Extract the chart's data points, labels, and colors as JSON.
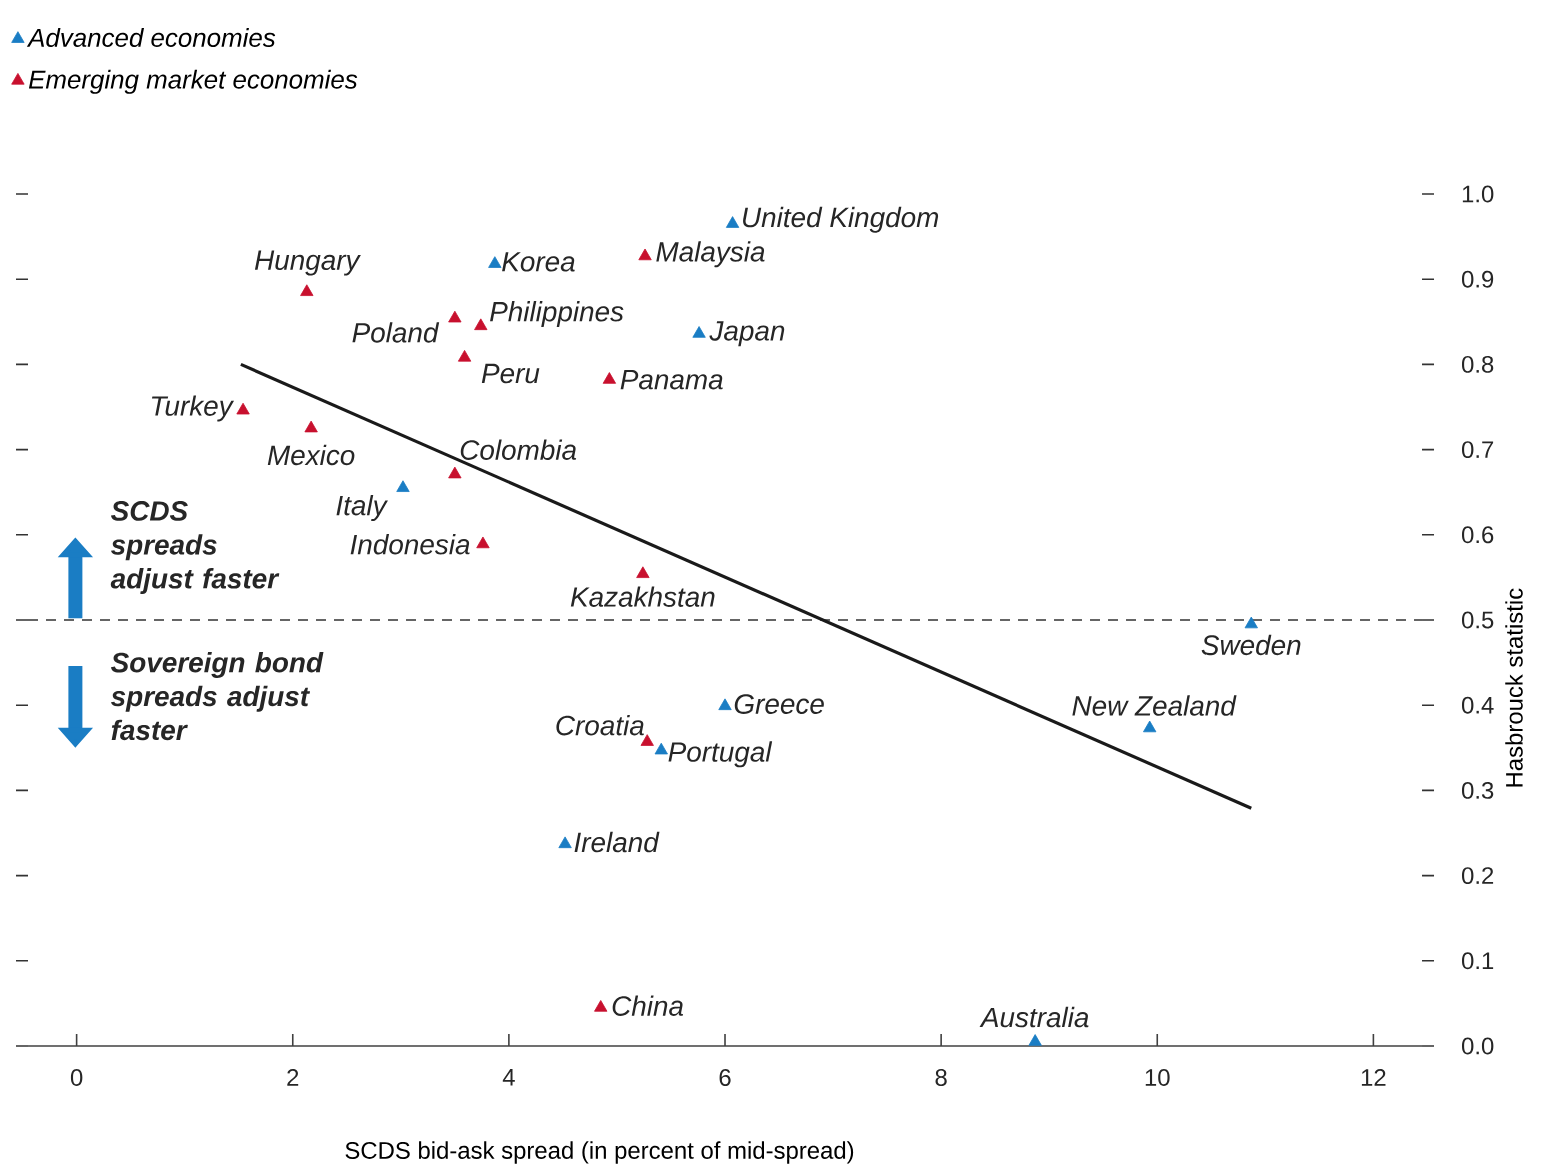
{
  "chart_data": {
    "type": "scatter",
    "xlabel": "SCDS bid-ask spread (in percent of mid-spread)",
    "ylabel": "Hasbrouck statistic",
    "xlim": [
      -0.45,
      12.45
    ],
    "ylim": [
      0,
      1.0
    ],
    "xticks": [
      0,
      2,
      4,
      6,
      8,
      10,
      12
    ],
    "yticks": [
      {
        "value": 0,
        "label": "0.0"
      },
      0.1,
      0.2,
      0.3,
      0.4,
      0.5,
      0.6,
      0.7,
      0.8,
      0.9,
      {
        "value": 1,
        "label": "1.0"
      }
    ],
    "legend": "top left",
    "marker": "triangle",
    "series": [
      {
        "name": "Advanced economies",
        "color": "#1a7dc4",
        "x": [
          6.07,
          3.87,
          5.76,
          3.02,
          6.0,
          5.41,
          4.52,
          10.87,
          9.93,
          8.87
        ],
        "values": [
          0.965,
          0.918,
          0.836,
          0.655,
          0.399,
          0.347,
          0.237,
          0.495,
          0.373,
          0.005
        ]
      },
      {
        "name": "Emerging market economies",
        "color": "#c8102e",
        "x": [
          5.26,
          2.13,
          3.5,
          3.74,
          3.59,
          4.93,
          1.54,
          2.17,
          3.5,
          3.76,
          5.24,
          5.28,
          4.85
        ],
        "values": [
          0.927,
          0.885,
          0.854,
          0.845,
          0.808,
          0.782,
          0.746,
          0.725,
          0.671,
          0.589,
          0.554,
          0.357,
          0.045
        ]
      },
      {
        "type": "line",
        "marker": "none",
        "color": "#1a1a1a",
        "x": [
          1.52,
          10.87
        ],
        "values": [
          0.8,
          0.279
        ]
      }
    ],
    "ref_lines": [
      {
        "axis": "y",
        "value": 0.5,
        "color": "#333333",
        "line_style": "dashed"
      }
    ],
    "annotations": [
      {
        "text": "United Kingdom",
        "x": 6.07,
        "y": 0.965
      },
      {
        "text": "Korea",
        "x": 3.87,
        "y": 0.918
      },
      {
        "text": "Malaysia",
        "x": 5.26,
        "y": 0.927
      },
      {
        "text": "Hungary",
        "x": 2.13,
        "y": 0.885
      },
      {
        "text": "Poland",
        "x": 3.5,
        "y": 0.854
      },
      {
        "text": "Philippines",
        "x": 3.74,
        "y": 0.845
      },
      {
        "text": "Japan",
        "x": 5.76,
        "y": 0.836
      },
      {
        "text": "Peru",
        "x": 3.59,
        "y": 0.808
      },
      {
        "text": "Panama",
        "x": 4.93,
        "y": 0.782
      },
      {
        "text": "Turkey",
        "x": 1.54,
        "y": 0.746
      },
      {
        "text": "Mexico",
        "x": 2.17,
        "y": 0.725
      },
      {
        "text": "Colombia",
        "x": 3.5,
        "y": 0.671
      },
      {
        "text": "Italy",
        "x": 3.02,
        "y": 0.655
      },
      {
        "text": "Indonesia",
        "x": 3.76,
        "y": 0.589
      },
      {
        "text": "Kazakhstan",
        "x": 5.24,
        "y": 0.554
      },
      {
        "text": "Greece",
        "x": 6.0,
        "y": 0.399
      },
      {
        "text": "Croatia",
        "x": 5.28,
        "y": 0.357
      },
      {
        "text": "Portugal",
        "x": 5.41,
        "y": 0.347
      },
      {
        "text": "Ireland",
        "x": 4.52,
        "y": 0.237
      },
      {
        "text": "China",
        "x": 4.85,
        "y": 0.045
      },
      {
        "text": "Sweden",
        "x": 10.87,
        "y": 0.495
      },
      {
        "text": "New Zealand",
        "x": 9.93,
        "y": 0.373
      },
      {
        "text": "Australia",
        "x": 8.87,
        "y": 0.005
      },
      "SCDS spreads adjust faster",
      "Sovereign bond spreads adjust faster"
    ]
  }
}
